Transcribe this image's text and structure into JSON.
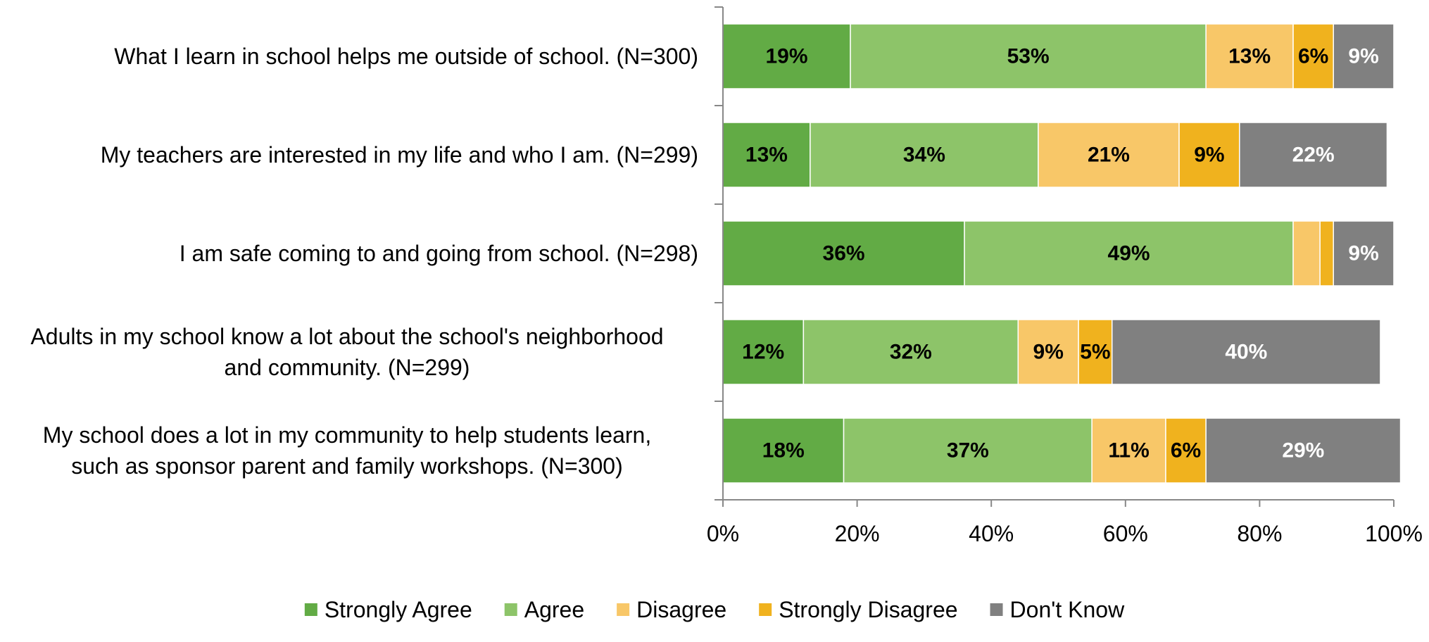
{
  "chart_data": {
    "type": "bar",
    "orientation": "horizontal",
    "stacked": true,
    "categories": [
      [
        "What I learn in school helps me outside of school. (N=300)"
      ],
      [
        "My teachers are interested in my life and who I am. (N=299)"
      ],
      [
        "I am safe coming to and going from school. (N=298)"
      ],
      [
        "Adults in my school know a lot about the school's neighborhood",
        "and community. (N=299)"
      ],
      [
        "My school does a lot in my community to help students learn,",
        "such as sponsor parent and family workshops. (N=300)"
      ]
    ],
    "series": [
      {
        "name": "Strongly Agree",
        "color": "#62ab45",
        "label_color": "#000000",
        "values": [
          19,
          13,
          36,
          12,
          18
        ]
      },
      {
        "name": "Agree",
        "color": "#8dc469",
        "label_color": "#000000",
        "values": [
          53,
          34,
          49,
          32,
          37
        ]
      },
      {
        "name": "Disagree",
        "color": "#f8c768",
        "label_color": "#000000",
        "values": [
          13,
          21,
          4,
          9,
          11
        ]
      },
      {
        "name": "Strongly Disagree",
        "color": "#f0b21e",
        "label_color": "#000000",
        "values": [
          6,
          9,
          2,
          5,
          6
        ]
      },
      {
        "name": "Don't Know",
        "color": "#808080",
        "label_color": "#ffffff",
        "values": [
          9,
          22,
          9,
          40,
          29
        ]
      }
    ],
    "data_labels": [
      [
        "19%",
        "13%",
        "36%",
        "12%",
        "18%"
      ],
      [
        "53%",
        "34%",
        "49%",
        "32%",
        "37%"
      ],
      [
        "13%",
        "21%",
        "",
        "9%",
        "11%"
      ],
      [
        "6%",
        "9%",
        "",
        "5%",
        "6%"
      ],
      [
        "9%",
        "22%",
        "9%",
        "40%",
        "29%"
      ]
    ],
    "x_ticks": [
      "0%",
      "20%",
      "40%",
      "60%",
      "80%",
      "100%"
    ],
    "xlim": [
      0,
      100
    ],
    "legend_position": "bottom",
    "grid": false
  }
}
